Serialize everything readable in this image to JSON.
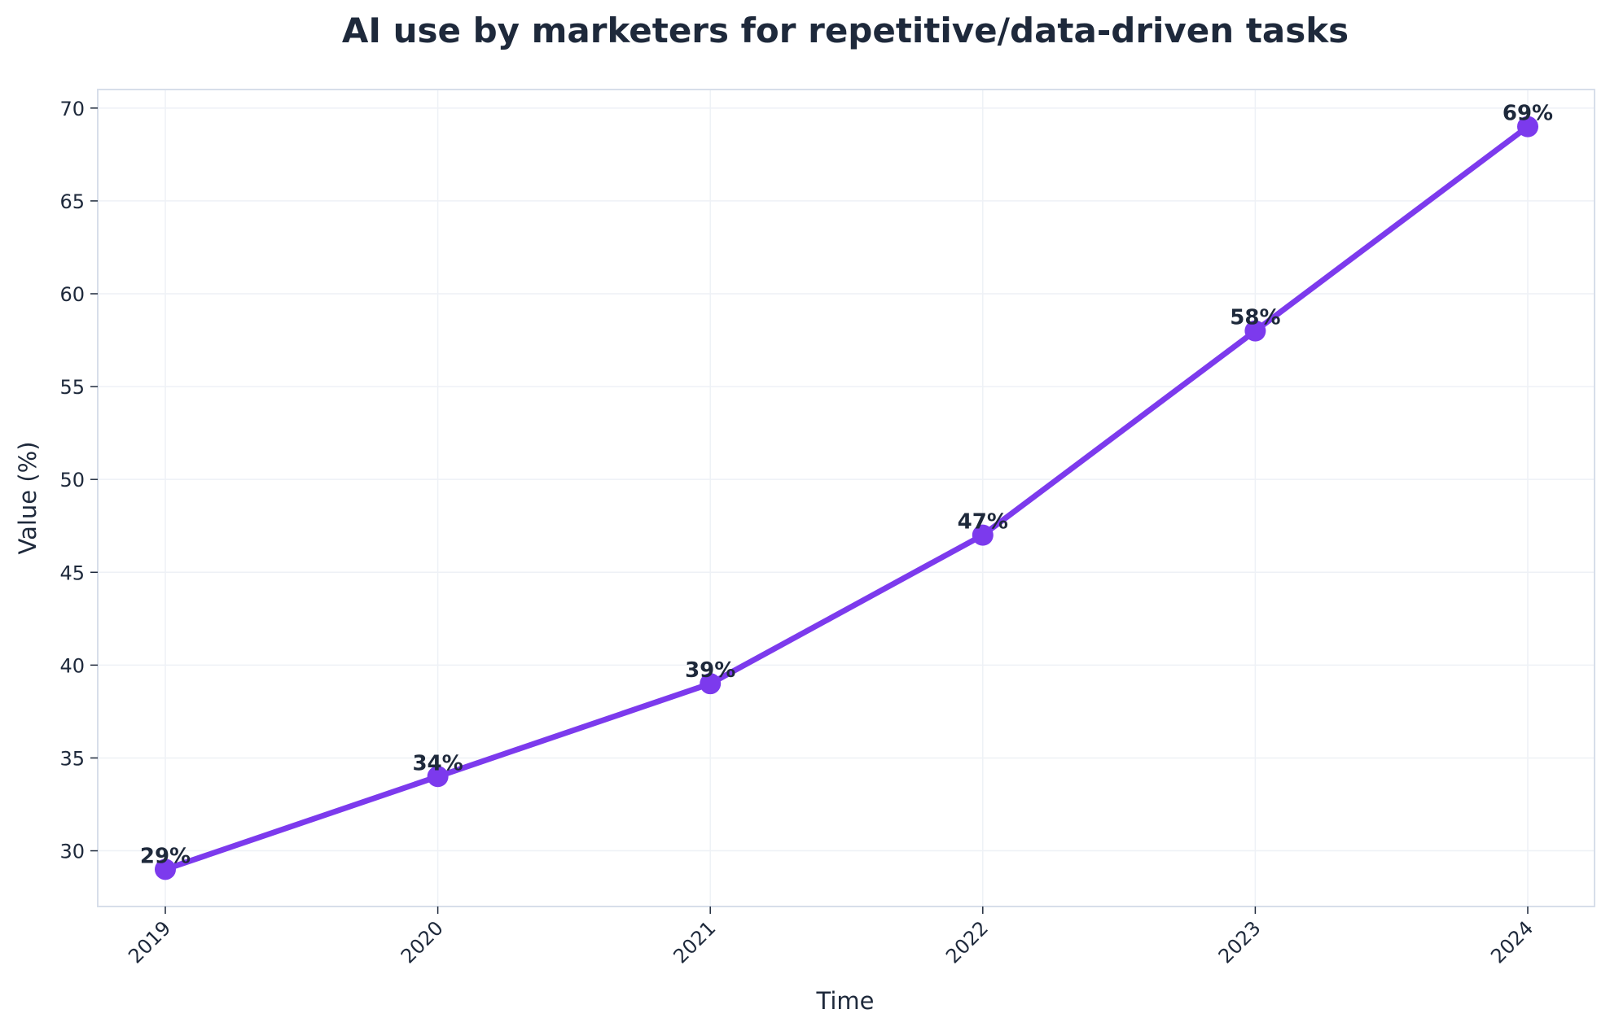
{
  "chart_data": {
    "type": "line",
    "title": "AI use by marketers for repetitive/data-driven tasks",
    "xlabel": "Time",
    "ylabel": "Value (%)",
    "categories": [
      "2019",
      "2020",
      "2021",
      "2022",
      "2023",
      "2024"
    ],
    "series": [
      {
        "values": [
          29,
          34,
          39,
          47,
          58,
          69
        ]
      }
    ],
    "data_labels": [
      "29%",
      "34%",
      "39%",
      "47%",
      "58%",
      "69%"
    ],
    "ylim": [
      27,
      71
    ],
    "yticks": [
      30,
      35,
      40,
      45,
      50,
      55,
      60,
      65,
      70
    ],
    "grid": true,
    "legend": "none",
    "colors": {
      "line": "#7c3aed",
      "text": "#1e293b",
      "grid": "#eef1f6",
      "frame": "#d7deea"
    }
  }
}
